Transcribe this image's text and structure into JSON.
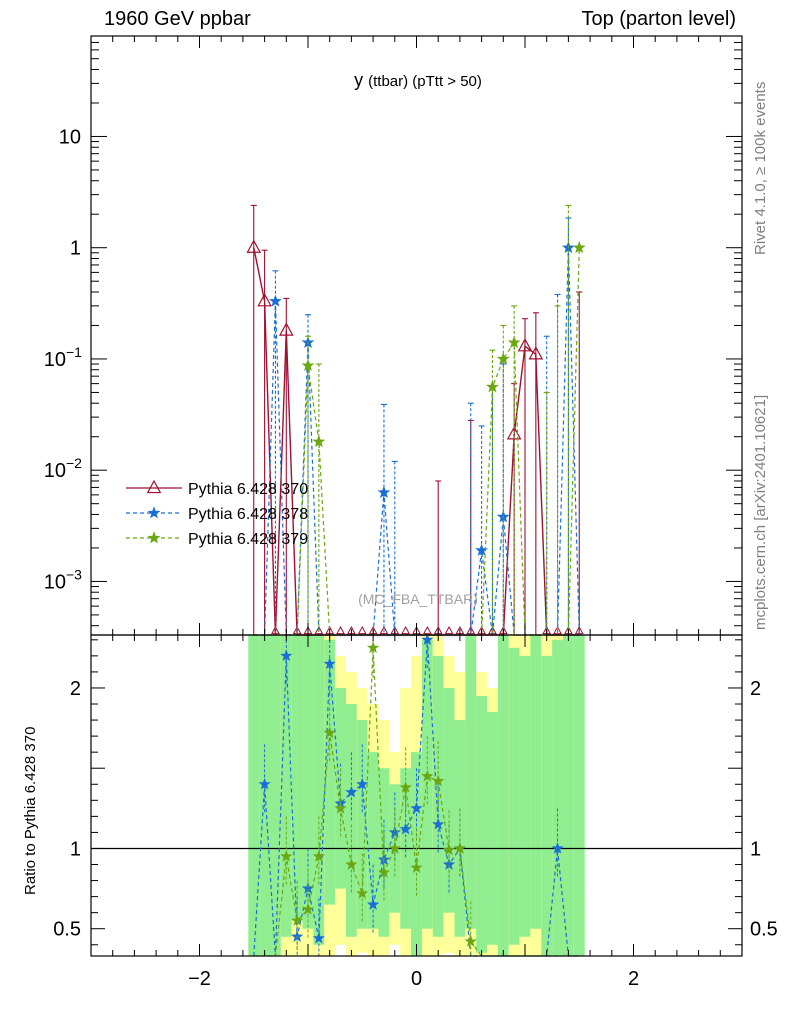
{
  "header": {
    "left": "1960 GeV ppbar",
    "right": "Top (parton level)"
  },
  "side_labels": {
    "rivet": "Rivet 4.1.0, ≥ 100k events",
    "mcplots": "mcplots.cern.ch [arXiv:2401.10621]"
  },
  "chart_data": {
    "type": "line",
    "title_main": "y",
    "title_sub": "(ttbar) (pTtt > 50)",
    "watermark": "(MC_FBA_TTBAR)",
    "ratio_ylabel": "Ratio to Pythia 6.428 370",
    "xlim": [
      -3,
      3
    ],
    "main_ylim_log": [
      0.00033,
      80
    ],
    "ratio_ylim": [
      0.33,
      2.33
    ],
    "main_yticks": [
      {
        "value": 10,
        "label": "10"
      },
      {
        "value": 1,
        "label": "1"
      },
      {
        "value": 0.1,
        "label": "10",
        "exp": "−1"
      },
      {
        "value": 0.01,
        "label": "10",
        "exp": "−2"
      },
      {
        "value": 0.001,
        "label": "10",
        "exp": "−3"
      }
    ],
    "ratio_yticks": [
      {
        "value": 2,
        "label": "2"
      },
      {
        "value": 1,
        "label": "1"
      },
      {
        "value": 0.5,
        "label": "0.5"
      }
    ],
    "xticks": [
      {
        "value": -2,
        "label": "−2"
      },
      {
        "value": 0,
        "label": "0"
      },
      {
        "value": 2,
        "label": "2"
      }
    ],
    "series": [
      {
        "name": "Pythia 6.428 370",
        "color": "#a01030",
        "style": "solid",
        "marker": "triangle",
        "x": [
          -1.5,
          -1.4,
          -1.3,
          -1.2,
          -1.1,
          -1.0,
          -0.9,
          -0.8,
          -0.7,
          -0.6,
          -0.5,
          -0.4,
          -0.3,
          -0.2,
          -0.1,
          0.0,
          0.1,
          0.2,
          0.3,
          0.4,
          0.5,
          0.6,
          0.7,
          0.8,
          0.9,
          1.0,
          1.1,
          1.2,
          1.3,
          1.4,
          1.5
        ],
        "y": [
          1.0,
          0.33,
          null,
          0.18,
          null,
          null,
          null,
          null,
          null,
          null,
          null,
          null,
          null,
          null,
          null,
          null,
          null,
          null,
          null,
          null,
          null,
          null,
          null,
          null,
          0.021,
          0.13,
          0.11,
          null,
          null,
          null,
          null
        ],
        "err_up": [
          2.4,
          0.95,
          null,
          0.35,
          null,
          null,
          null,
          null,
          null,
          null,
          null,
          null,
          null,
          null,
          null,
          null,
          null,
          0.008,
          null,
          null,
          0.028,
          null,
          null,
          null,
          0.06,
          0.23,
          0.26,
          null,
          null,
          null,
          0.4
        ]
      },
      {
        "name": "Pythia 6.428 378",
        "color": "#1a6fd6",
        "style": "dashed",
        "marker": "star",
        "x": [
          -1.5,
          -1.4,
          -1.3,
          -1.2,
          -1.1,
          -1.0,
          -0.9,
          -0.8,
          -0.7,
          -0.6,
          -0.5,
          -0.4,
          -0.3,
          -0.2,
          -0.1,
          0.0,
          0.1,
          0.2,
          0.3,
          0.4,
          0.5,
          0.6,
          0.7,
          0.8,
          0.9,
          1.0,
          1.1,
          1.2,
          1.3,
          1.4,
          1.5
        ],
        "y": [
          null,
          null,
          0.33,
          null,
          null,
          0.14,
          null,
          null,
          null,
          null,
          null,
          null,
          0.0063,
          null,
          null,
          null,
          null,
          null,
          null,
          null,
          null,
          0.0019,
          null,
          0.0038,
          null,
          null,
          null,
          null,
          null,
          1.0,
          null
        ],
        "err_up": [
          null,
          null,
          0.62,
          null,
          null,
          0.25,
          null,
          null,
          null,
          null,
          null,
          null,
          0.039,
          0.012,
          null,
          null,
          null,
          null,
          null,
          null,
          0.04,
          0.025,
          0.055,
          0.09,
          null,
          null,
          null,
          0.16,
          0.38,
          1.85,
          null
        ],
        "ratio": [
          null,
          1.4,
          null,
          2.2,
          0.45,
          0.75,
          0.44,
          2.15,
          1.28,
          1.35,
          1.4,
          0.65,
          0.93,
          1.1,
          1.12,
          1.25,
          2.3,
          1.15,
          0.9,
          1.0,
          null,
          null,
          null,
          null,
          null,
          null,
          null,
          null,
          1.0,
          null,
          null
        ]
      },
      {
        "name": "Pythia 6.428 379",
        "color": "#6aa812",
        "style": "dashed",
        "marker": "star",
        "x": [
          -1.5,
          -1.4,
          -1.3,
          -1.2,
          -1.1,
          -1.0,
          -0.9,
          -0.8,
          -0.7,
          -0.6,
          -0.5,
          -0.4,
          -0.3,
          -0.2,
          -0.1,
          0.0,
          0.1,
          0.2,
          0.3,
          0.4,
          0.5,
          0.6,
          0.7,
          0.8,
          0.9,
          1.0,
          1.1,
          1.2,
          1.3,
          1.4,
          1.5
        ],
        "y": [
          null,
          null,
          null,
          null,
          null,
          0.087,
          0.018,
          null,
          null,
          null,
          null,
          null,
          null,
          null,
          null,
          null,
          null,
          null,
          null,
          null,
          null,
          null,
          0.056,
          0.1,
          0.14,
          null,
          null,
          null,
          null,
          null,
          1.0
        ],
        "err_up": [
          null,
          null,
          null,
          null,
          null,
          0.16,
          0.09,
          null,
          null,
          null,
          null,
          null,
          null,
          null,
          null,
          null,
          null,
          null,
          null,
          null,
          null,
          null,
          0.12,
          0.2,
          0.3,
          null,
          null,
          0.05,
          0.3,
          2.4,
          null
        ],
        "ratio": [
          null,
          null,
          null,
          0.95,
          0.55,
          0.62,
          0.95,
          1.72,
          1.25,
          0.9,
          0.72,
          2.25,
          0.85,
          1.0,
          1.38,
          0.88,
          1.45,
          1.42,
          0.99,
          1.0,
          0.42,
          null,
          null,
          null,
          null,
          null,
          null,
          null,
          null,
          null,
          null
        ]
      }
    ],
    "bands": {
      "green_color": "#90ee90",
      "yellow_color": "#ffff99",
      "bins": [
        {
          "x0": -1.55,
          "x1": -1.45,
          "green": [
            0.33,
            2.33
          ],
          "yellow": [
            0.33,
            2.33
          ]
        },
        {
          "x0": -1.45,
          "x1": -1.35,
          "green": [
            0.33,
            2.33
          ],
          "yellow": [
            0.33,
            2.33
          ]
        },
        {
          "x0": -1.35,
          "x1": -1.25,
          "green": [
            0.33,
            2.33
          ],
          "yellow": [
            0.33,
            2.33
          ]
        },
        {
          "x0": -1.25,
          "x1": -1.15,
          "green": [
            0.45,
            2.33
          ],
          "yellow": [
            0.33,
            2.33
          ]
        },
        {
          "x0": -1.15,
          "x1": -1.05,
          "green": [
            0.55,
            2.33
          ],
          "yellow": [
            0.33,
            2.33
          ]
        },
        {
          "x0": -1.05,
          "x1": -0.95,
          "green": [
            0.5,
            2.33
          ],
          "yellow": [
            0.33,
            2.33
          ]
        },
        {
          "x0": -0.95,
          "x1": -0.85,
          "green": [
            0.4,
            2.33
          ],
          "yellow": [
            0.33,
            2.33
          ]
        },
        {
          "x0": -0.85,
          "x1": -0.75,
          "green": [
            0.65,
            2.3
          ],
          "yellow": [
            0.33,
            2.33
          ]
        },
        {
          "x0": -0.75,
          "x1": -0.65,
          "green": [
            0.75,
            2.0
          ],
          "yellow": [
            0.4,
            2.2
          ]
        },
        {
          "x0": -0.65,
          "x1": -0.55,
          "green": [
            0.45,
            1.9
          ],
          "yellow": [
            0.33,
            2.1
          ]
        },
        {
          "x0": -0.55,
          "x1": -0.45,
          "green": [
            0.5,
            1.8
          ],
          "yellow": [
            0.35,
            2.0
          ]
        },
        {
          "x0": -0.45,
          "x1": -0.35,
          "green": [
            0.5,
            1.6
          ],
          "yellow": [
            0.33,
            1.9
          ]
        },
        {
          "x0": -0.35,
          "x1": -0.25,
          "green": [
            0.45,
            1.5
          ],
          "yellow": [
            0.33,
            1.8
          ]
        },
        {
          "x0": -0.25,
          "x1": -0.15,
          "green": [
            0.6,
            1.4
          ],
          "yellow": [
            0.4,
            1.6
          ]
        },
        {
          "x0": -0.15,
          "x1": -0.05,
          "green": [
            0.5,
            1.5
          ],
          "yellow": [
            0.33,
            2.0
          ]
        },
        {
          "x0": -0.05,
          "x1": 0.05,
          "green": [
            0.33,
            1.6
          ],
          "yellow": [
            0.33,
            2.2
          ]
        },
        {
          "x0": 0.05,
          "x1": 0.15,
          "green": [
            0.5,
            2.3
          ],
          "yellow": [
            0.33,
            2.33
          ]
        },
        {
          "x0": 0.15,
          "x1": 0.25,
          "green": [
            0.45,
            2.2
          ],
          "yellow": [
            0.33,
            2.33
          ]
        },
        {
          "x0": 0.25,
          "x1": 0.35,
          "green": [
            0.6,
            2.0
          ],
          "yellow": [
            0.35,
            2.2
          ]
        },
        {
          "x0": 0.35,
          "x1": 0.45,
          "green": [
            0.45,
            1.8
          ],
          "yellow": [
            0.33,
            2.1
          ]
        },
        {
          "x0": 0.45,
          "x1": 0.55,
          "green": [
            0.5,
            2.33
          ],
          "yellow": [
            0.33,
            2.33
          ]
        },
        {
          "x0": 0.55,
          "x1": 0.65,
          "green": [
            0.35,
            1.95
          ],
          "yellow": [
            0.33,
            2.1
          ]
        },
        {
          "x0": 0.65,
          "x1": 0.75,
          "green": [
            0.4,
            1.85
          ],
          "yellow": [
            0.33,
            2.0
          ]
        },
        {
          "x0": 0.75,
          "x1": 0.85,
          "green": [
            0.33,
            2.33
          ],
          "yellow": [
            0.33,
            2.33
          ]
        },
        {
          "x0": 0.85,
          "x1": 0.95,
          "green": [
            0.4,
            2.25
          ],
          "yellow": [
            0.33,
            2.33
          ]
        },
        {
          "x0": 0.95,
          "x1": 1.05,
          "green": [
            0.45,
            2.2
          ],
          "yellow": [
            0.33,
            2.33
          ]
        },
        {
          "x0": 1.05,
          "x1": 1.15,
          "green": [
            0.5,
            2.33
          ],
          "yellow": [
            0.33,
            2.33
          ]
        },
        {
          "x0": 1.15,
          "x1": 1.25,
          "green": [
            0.33,
            2.2
          ],
          "yellow": [
            0.33,
            2.33
          ]
        },
        {
          "x0": 1.25,
          "x1": 1.35,
          "green": [
            0.33,
            2.3
          ],
          "yellow": [
            0.33,
            2.33
          ]
        },
        {
          "x0": 1.35,
          "x1": 1.45,
          "green": [
            0.33,
            2.33
          ],
          "yellow": [
            0.33,
            2.33
          ]
        },
        {
          "x0": 1.45,
          "x1": 1.55,
          "green": [
            0.33,
            2.33
          ],
          "yellow": [
            0.33,
            2.33
          ]
        }
      ]
    }
  }
}
